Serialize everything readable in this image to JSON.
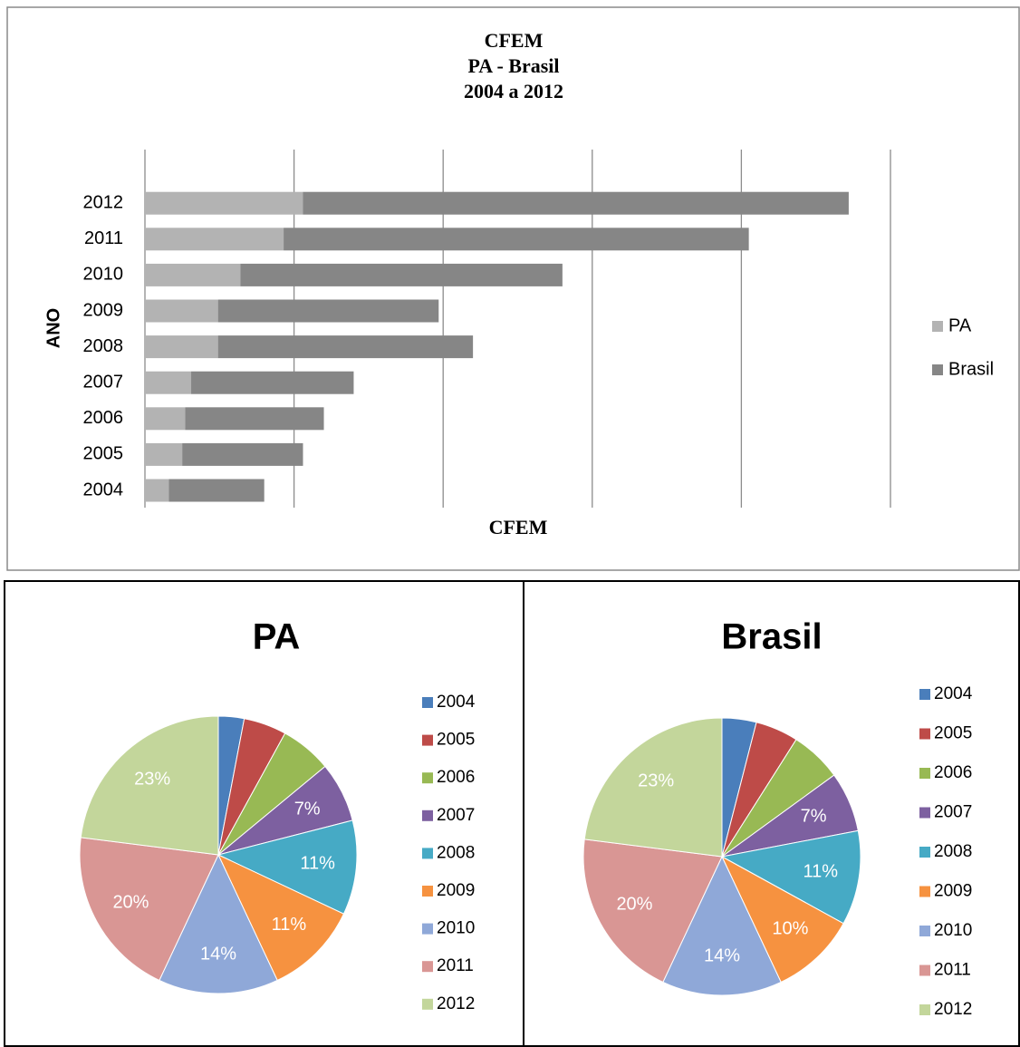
{
  "chart_data": [
    {
      "type": "bar",
      "orientation": "horizontal",
      "stacked": true,
      "title": [
        "CFEM",
        "PA - Brasil",
        "2004 a 2012"
      ],
      "x_label": "CFEM",
      "y_label": "ANO",
      "categories": [
        "2004",
        "2005",
        "2006",
        "2007",
        "2008",
        "2009",
        "2010",
        "2011",
        "2012"
      ],
      "series": [
        {
          "name": "PA",
          "color": "#b3b3b3",
          "values": [
            0.16,
            0.25,
            0.27,
            0.31,
            0.49,
            0.49,
            0.64,
            0.93,
            1.06
          ]
        },
        {
          "name": "Brasil",
          "color": "#868686",
          "values": [
            0.64,
            0.81,
            0.93,
            1.09,
            1.71,
            1.48,
            2.16,
            3.12,
            3.66
          ]
        }
      ],
      "xlim": [
        0,
        5
      ],
      "xticks": [
        0,
        1,
        2,
        3,
        4,
        5
      ],
      "grid": true,
      "legend": "right"
    },
    {
      "type": "pie",
      "title": "PA",
      "categories": [
        "2004",
        "2005",
        "2006",
        "2007",
        "2008",
        "2009",
        "2010",
        "2011",
        "2012"
      ],
      "values": [
        3,
        5,
        6,
        7,
        11,
        11,
        14,
        20,
        23
      ],
      "value_labels": [
        null,
        null,
        null,
        "7%",
        "11%",
        "11%",
        "14%",
        "20%",
        "23%"
      ],
      "colors": [
        "#4a7ebb",
        "#be4b48",
        "#98b954",
        "#7d60a0",
        "#46aac5",
        "#f69240",
        "#8fa8d8",
        "#d99694",
        "#c3d69b"
      ],
      "legend": "right"
    },
    {
      "type": "pie",
      "title": "Brasil",
      "categories": [
        "2004",
        "2005",
        "2006",
        "2007",
        "2008",
        "2009",
        "2010",
        "2011",
        "2012"
      ],
      "values": [
        4,
        5,
        6,
        7,
        11,
        10,
        14,
        20,
        23
      ],
      "value_labels": [
        null,
        null,
        null,
        "7%",
        "11%",
        "10%",
        "14%",
        "20%",
        "23%"
      ],
      "colors": [
        "#4a7ebb",
        "#be4b48",
        "#98b954",
        "#7d60a0",
        "#46aac5",
        "#f69240",
        "#8fa8d8",
        "#d99694",
        "#c3d69b"
      ],
      "legend": "right"
    }
  ]
}
